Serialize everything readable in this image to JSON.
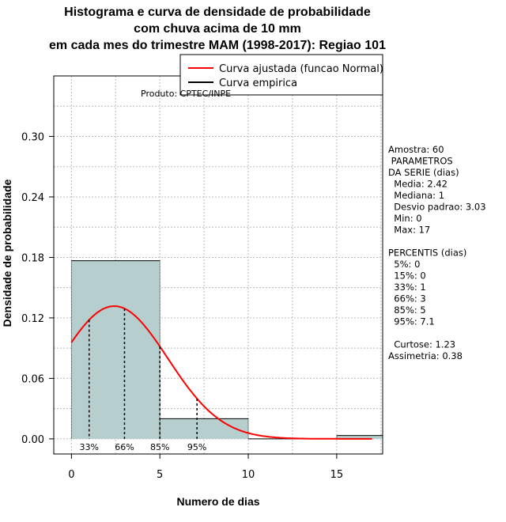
{
  "chart_data": {
    "type": "bar",
    "title": [
      "Histograma e curva de densidade de probabilidade",
      "com chuva acima de 10 mm",
      "em cada mes do trimestre MAM (1998-2017): Regiao 101"
    ],
    "xlabel": "Numero de dias",
    "ylabel": "Densidade de probabilidade",
    "xlim": [
      -1,
      17.6
    ],
    "ylim": [
      -0.015,
      0.36
    ],
    "xticks": [
      0,
      5,
      10,
      15
    ],
    "xtick_labels": [
      "0",
      "5",
      "10",
      "15"
    ],
    "yticks": [
      0.0,
      0.06,
      0.12,
      0.18,
      0.24,
      0.3
    ],
    "ytick_labels": [
      "0.00",
      "0.06",
      "0.12",
      "0.18",
      "0.24",
      "0.30"
    ],
    "bins": [
      {
        "from": 0,
        "to": 5,
        "density": 0.1767
      },
      {
        "from": 5,
        "to": 10,
        "density": 0.02
      },
      {
        "from": 10,
        "to": 15,
        "density": 0.0
      },
      {
        "from": 15,
        "to": 20,
        "density": 0.0033
      }
    ],
    "normal_fit": {
      "mean": 2.42,
      "sd": 3.03
    },
    "percentile_lines": [
      {
        "x": 1,
        "label": "33%"
      },
      {
        "x": 3,
        "label": "66%"
      },
      {
        "x": 5,
        "label": "85%"
      },
      {
        "x": 7.1,
        "label": "95%"
      }
    ],
    "legend": {
      "position": "top-right",
      "entries": [
        {
          "label": "Curva ajustada (funcao Normal)",
          "color": "#ff0000"
        },
        {
          "label": "Curva empirica",
          "color": "#000000"
        }
      ]
    },
    "product_label": "Produto: CPTEC/INPE",
    "colors": {
      "bar_fill": "#b6cece",
      "curve": "#ff0000",
      "grid": "#bdbdbd"
    }
  },
  "stats": [
    "Amostra: 60",
    " PARAMETROS",
    "DA SERIE (dias)",
    "  Media: 2.42",
    "  Mediana: 1",
    "  Desvio padrao: 3.03",
    "  Min: 0",
    "  Max: 17",
    "",
    "PERCENTIS (dias)",
    "  5%: 0",
    "  15%: 0",
    "  33%: 1",
    "  66%: 3",
    "  85%: 5",
    "  95%: 7.1",
    "",
    "  Curtose: 1.23",
    "Assimetria: 0.38"
  ]
}
